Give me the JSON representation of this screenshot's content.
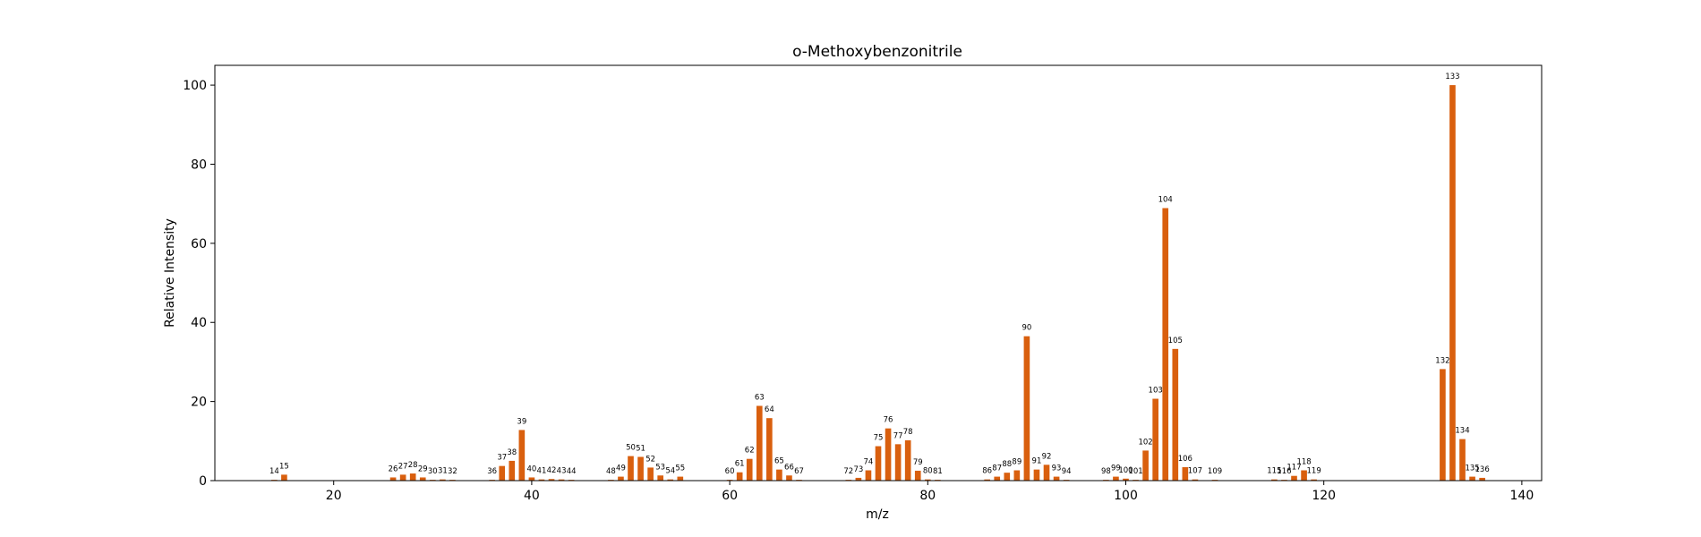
{
  "chart_data": {
    "type": "bar",
    "title": "o-Methoxybenzonitrile",
    "xlabel": "m/z",
    "ylabel": "Relative Intensity",
    "xlim": [
      8,
      142
    ],
    "ylim": [
      0,
      105
    ],
    "xticks": [
      20,
      40,
      60,
      80,
      100,
      120,
      140
    ],
    "yticks": [
      0,
      20,
      40,
      60,
      80,
      100
    ],
    "bar_color": "#d95f0e",
    "grid": false,
    "legend": "none",
    "peaks": [
      {
        "mz": 14,
        "intensity": 0.2
      },
      {
        "mz": 15,
        "intensity": 1.5
      },
      {
        "mz": 26,
        "intensity": 0.8
      },
      {
        "mz": 27,
        "intensity": 1.5
      },
      {
        "mz": 28,
        "intensity": 1.8
      },
      {
        "mz": 29,
        "intensity": 0.8
      },
      {
        "mz": 30,
        "intensity": 0.2
      },
      {
        "mz": 31,
        "intensity": 0.3
      },
      {
        "mz": 32,
        "intensity": 0.2
      },
      {
        "mz": 36,
        "intensity": 0.2
      },
      {
        "mz": 37,
        "intensity": 3.7
      },
      {
        "mz": 38,
        "intensity": 5.0
      },
      {
        "mz": 39,
        "intensity": 12.8
      },
      {
        "mz": 40,
        "intensity": 0.8
      },
      {
        "mz": 41,
        "intensity": 0.3
      },
      {
        "mz": 42,
        "intensity": 0.4
      },
      {
        "mz": 43,
        "intensity": 0.3
      },
      {
        "mz": 44,
        "intensity": 0.2
      },
      {
        "mz": 48,
        "intensity": 0.2
      },
      {
        "mz": 49,
        "intensity": 1.0
      },
      {
        "mz": 50,
        "intensity": 6.2
      },
      {
        "mz": 51,
        "intensity": 6.0
      },
      {
        "mz": 52,
        "intensity": 3.3
      },
      {
        "mz": 53,
        "intensity": 1.3
      },
      {
        "mz": 54,
        "intensity": 0.3
      },
      {
        "mz": 55,
        "intensity": 1.0
      },
      {
        "mz": 60,
        "intensity": 0.2
      },
      {
        "mz": 61,
        "intensity": 2.1
      },
      {
        "mz": 62,
        "intensity": 5.5
      },
      {
        "mz": 63,
        "intensity": 18.9
      },
      {
        "mz": 64,
        "intensity": 15.8
      },
      {
        "mz": 65,
        "intensity": 2.8
      },
      {
        "mz": 66,
        "intensity": 1.3
      },
      {
        "mz": 67,
        "intensity": 0.2
      },
      {
        "mz": 72,
        "intensity": 0.2
      },
      {
        "mz": 73,
        "intensity": 0.7
      },
      {
        "mz": 74,
        "intensity": 2.6
      },
      {
        "mz": 75,
        "intensity": 8.7
      },
      {
        "mz": 76,
        "intensity": 13.2
      },
      {
        "mz": 77,
        "intensity": 9.2
      },
      {
        "mz": 78,
        "intensity": 10.2
      },
      {
        "mz": 79,
        "intensity": 2.5
      },
      {
        "mz": 80,
        "intensity": 0.3
      },
      {
        "mz": 81,
        "intensity": 0.2
      },
      {
        "mz": 86,
        "intensity": 0.3
      },
      {
        "mz": 87,
        "intensity": 1.0
      },
      {
        "mz": 88,
        "intensity": 2.0
      },
      {
        "mz": 89,
        "intensity": 2.6
      },
      {
        "mz": 90,
        "intensity": 36.5
      },
      {
        "mz": 91,
        "intensity": 2.8
      },
      {
        "mz": 92,
        "intensity": 4.0
      },
      {
        "mz": 93,
        "intensity": 1.0
      },
      {
        "mz": 94,
        "intensity": 0.2
      },
      {
        "mz": 98,
        "intensity": 0.2
      },
      {
        "mz": 99,
        "intensity": 1.0
      },
      {
        "mz": 100,
        "intensity": 0.5
      },
      {
        "mz": 101,
        "intensity": 0.2
      },
      {
        "mz": 102,
        "intensity": 7.6
      },
      {
        "mz": 103,
        "intensity": 20.7
      },
      {
        "mz": 104,
        "intensity": 68.9
      },
      {
        "mz": 105,
        "intensity": 33.3
      },
      {
        "mz": 106,
        "intensity": 3.4
      },
      {
        "mz": 107,
        "intensity": 0.3
      },
      {
        "mz": 109,
        "intensity": 0.2
      },
      {
        "mz": 115,
        "intensity": 0.3
      },
      {
        "mz": 116,
        "intensity": 0.2
      },
      {
        "mz": 117,
        "intensity": 1.2
      },
      {
        "mz": 118,
        "intensity": 2.6
      },
      {
        "mz": 119,
        "intensity": 0.3
      },
      {
        "mz": 132,
        "intensity": 28.2
      },
      {
        "mz": 133,
        "intensity": 100.0
      },
      {
        "mz": 134,
        "intensity": 10.5
      },
      {
        "mz": 135,
        "intensity": 1.0
      },
      {
        "mz": 136,
        "intensity": 0.7
      }
    ]
  }
}
